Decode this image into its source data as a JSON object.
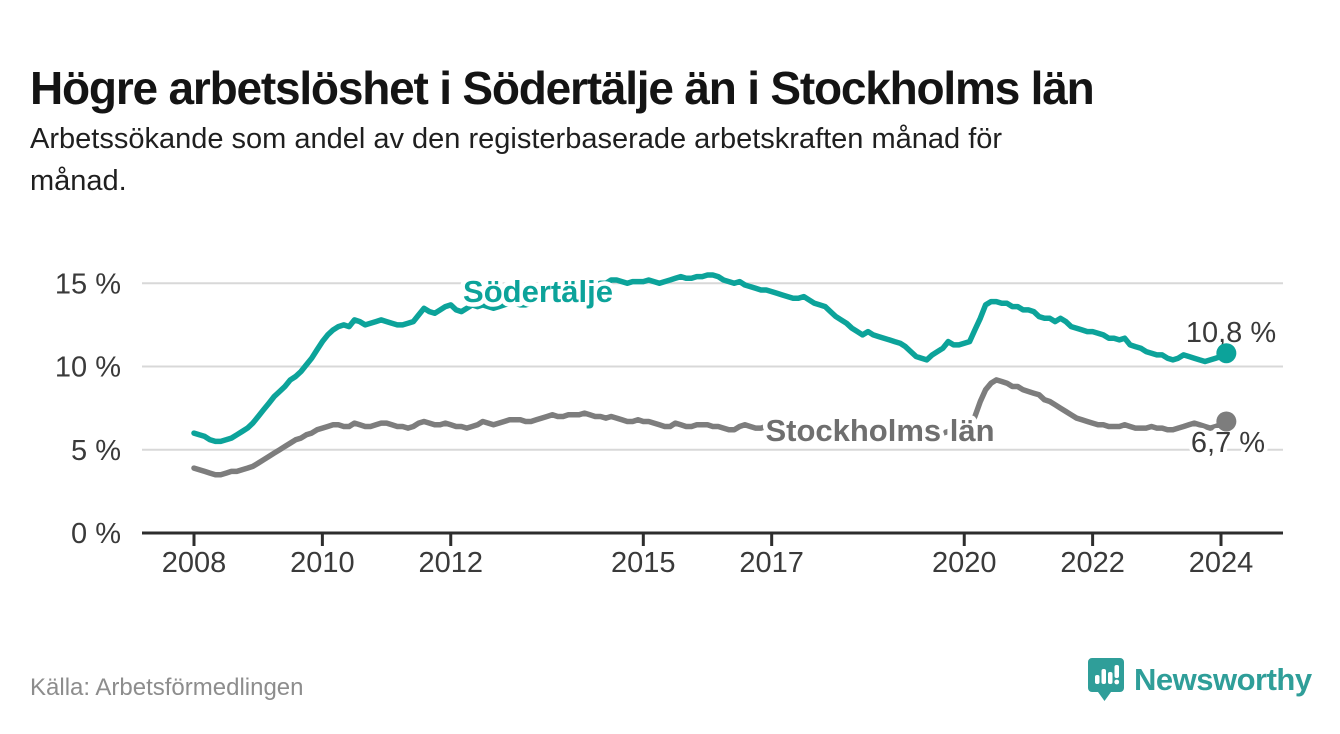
{
  "header": {
    "title": "Högre arbetslöshet i Södertälje än i Stockholms län",
    "subtitle_lines": [
      "Arbetssökande som andel av den registerbaserade arbetskraften månad för",
      "månad."
    ]
  },
  "footer": {
    "source": "Källa: Arbetsförmedlingen",
    "logo_text": "Newsworthy"
  },
  "colors": {
    "sodertalje_teal": "#0ca39a",
    "stockholm_gray": "#7d7d7d",
    "stockholm_label_gray": "#6f6f6f",
    "value_label": "#3a3a3a",
    "gridline": "#d8d8d8",
    "axis": "#2d2d2d",
    "tick_text": "#3a3a3a",
    "logo_teal": "#2f9e99"
  },
  "chart_data": {
    "type": "line",
    "title": "Högre arbetslöshet i Södertälje än i Stockholms län",
    "subtitle": "Arbetssökande som andel av den registerbaserade arbetskraften månad för månad.",
    "unit": "%",
    "frequency": "monthly",
    "x_start": "2008-01",
    "x_end": "2024-02",
    "ylim": [
      0,
      16
    ],
    "grid": "horizontal",
    "legend_position": "inline-labels",
    "y_ticks": [
      {
        "value": 15,
        "label": "15 %"
      },
      {
        "value": 10,
        "label": "10 %"
      },
      {
        "value": 5,
        "label": "5 %"
      },
      {
        "value": 0,
        "label": "0 %"
      }
    ],
    "x_ticks": [
      2008,
      2010,
      2012,
      2015,
      2017,
      2020,
      2022,
      2024
    ],
    "series": [
      {
        "name": "Södertälje",
        "color": "#0ca39a",
        "label_color": "#0ca39a",
        "end_label": "10,8 %",
        "end_value": 10.8,
        "values": [
          6.0,
          5.9,
          5.8,
          5.6,
          5.5,
          5.5,
          5.6,
          5.7,
          5.9,
          6.1,
          6.3,
          6.6,
          7.0,
          7.4,
          7.8,
          8.2,
          8.5,
          8.8,
          9.2,
          9.4,
          9.7,
          10.1,
          10.5,
          11.0,
          11.5,
          11.9,
          12.2,
          12.4,
          12.5,
          12.4,
          12.8,
          12.7,
          12.5,
          12.6,
          12.7,
          12.8,
          12.7,
          12.6,
          12.5,
          12.5,
          12.6,
          12.7,
          13.1,
          13.5,
          13.3,
          13.2,
          13.4,
          13.6,
          13.7,
          13.4,
          13.3,
          13.5,
          13.7,
          13.6,
          13.7,
          13.6,
          13.5,
          13.6,
          13.7,
          13.8,
          13.8,
          13.7,
          13.7,
          13.8,
          13.9,
          14.0,
          14.1,
          14.1,
          14.2,
          14.3,
          14.4,
          14.5,
          14.6,
          14.7,
          14.8,
          14.9,
          15.0,
          15.0,
          15.2,
          15.2,
          15.1,
          15.0,
          15.1,
          15.1,
          15.1,
          15.2,
          15.1,
          15.0,
          15.1,
          15.2,
          15.3,
          15.4,
          15.3,
          15.3,
          15.4,
          15.4,
          15.5,
          15.5,
          15.4,
          15.2,
          15.1,
          15.0,
          15.1,
          14.9,
          14.8,
          14.7,
          14.6,
          14.6,
          14.5,
          14.4,
          14.3,
          14.2,
          14.1,
          14.1,
          14.2,
          14.0,
          13.8,
          13.7,
          13.6,
          13.3,
          13.0,
          12.8,
          12.6,
          12.3,
          12.1,
          11.9,
          12.1,
          11.9,
          11.8,
          11.7,
          11.6,
          11.5,
          11.4,
          11.2,
          10.9,
          10.6,
          10.5,
          10.4,
          10.7,
          10.9,
          11.1,
          11.5,
          11.3,
          11.3,
          11.4,
          11.5,
          12.2,
          12.9,
          13.7,
          13.9,
          13.9,
          13.8,
          13.8,
          13.6,
          13.6,
          13.4,
          13.4,
          13.3,
          13.0,
          12.9,
          12.9,
          12.7,
          12.9,
          12.7,
          12.4,
          12.3,
          12.2,
          12.1,
          12.1,
          12.0,
          11.9,
          11.7,
          11.7,
          11.6,
          11.7,
          11.3,
          11.2,
          11.1,
          10.9,
          10.8,
          10.7,
          10.7,
          10.5,
          10.4,
          10.5,
          10.7,
          10.6,
          10.5,
          10.4,
          10.3,
          10.4,
          10.5,
          10.6,
          10.8
        ]
      },
      {
        "name": "Stockholms län",
        "color": "#7d7d7d",
        "label_color": "#6f6f6f",
        "end_label": "6,7 %",
        "end_value": 6.7,
        "values": [
          3.9,
          3.8,
          3.7,
          3.6,
          3.5,
          3.5,
          3.6,
          3.7,
          3.7,
          3.8,
          3.9,
          4.0,
          4.2,
          4.4,
          4.6,
          4.8,
          5.0,
          5.2,
          5.4,
          5.6,
          5.7,
          5.9,
          6.0,
          6.2,
          6.3,
          6.4,
          6.5,
          6.5,
          6.4,
          6.4,
          6.6,
          6.5,
          6.4,
          6.4,
          6.5,
          6.6,
          6.6,
          6.5,
          6.4,
          6.4,
          6.3,
          6.4,
          6.6,
          6.7,
          6.6,
          6.5,
          6.5,
          6.6,
          6.5,
          6.4,
          6.4,
          6.3,
          6.4,
          6.5,
          6.7,
          6.6,
          6.5,
          6.6,
          6.7,
          6.8,
          6.8,
          6.8,
          6.7,
          6.7,
          6.8,
          6.9,
          7.0,
          7.1,
          7.0,
          7.0,
          7.1,
          7.1,
          7.1,
          7.2,
          7.1,
          7.0,
          7.0,
          6.9,
          7.0,
          6.9,
          6.8,
          6.7,
          6.7,
          6.8,
          6.7,
          6.7,
          6.6,
          6.5,
          6.4,
          6.4,
          6.6,
          6.5,
          6.4,
          6.4,
          6.5,
          6.5,
          6.5,
          6.4,
          6.4,
          6.3,
          6.2,
          6.2,
          6.4,
          6.5,
          6.4,
          6.3,
          6.3,
          6.4,
          6.3,
          6.3,
          6.2,
          6.2,
          6.1,
          6.2,
          6.3,
          6.2,
          6.1,
          6.1,
          6.2,
          6.2,
          6.2,
          6.1,
          6.1,
          6.0,
          6.0,
          6.0,
          6.1,
          6.0,
          5.9,
          5.9,
          6.0,
          6.0,
          6.0,
          6.0,
          5.9,
          5.9,
          5.9,
          5.9,
          6.0,
          6.0,
          6.0,
          6.1,
          6.2,
          6.3,
          6.4,
          6.5,
          7.0,
          7.9,
          8.6,
          9.0,
          9.2,
          9.1,
          9.0,
          8.8,
          8.8,
          8.6,
          8.5,
          8.4,
          8.3,
          8.0,
          7.9,
          7.7,
          7.5,
          7.3,
          7.1,
          6.9,
          6.8,
          6.7,
          6.6,
          6.5,
          6.5,
          6.4,
          6.4,
          6.4,
          6.5,
          6.4,
          6.3,
          6.3,
          6.3,
          6.4,
          6.3,
          6.3,
          6.2,
          6.2,
          6.3,
          6.4,
          6.5,
          6.6,
          6.5,
          6.4,
          6.3,
          6.4,
          6.5,
          6.7
        ]
      }
    ]
  }
}
